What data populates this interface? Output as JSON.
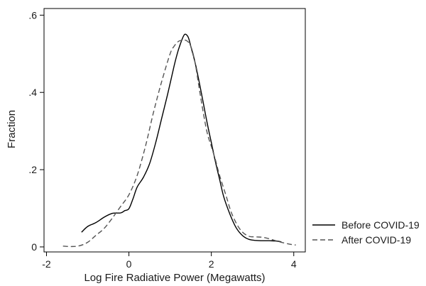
{
  "chart_data": {
    "type": "line",
    "title": "",
    "xlabel": "Log Fire Radiative Power (Megawatts)",
    "ylabel": "Fraction",
    "xlim": [
      -2.06,
      4.28
    ],
    "ylim": [
      -0.013,
      0.6172
    ],
    "xticks": [
      {
        "value": -2,
        "label": "-2"
      },
      {
        "value": 0,
        "label": "0"
      },
      {
        "value": 2,
        "label": "2"
      },
      {
        "value": 4,
        "label": "4"
      }
    ],
    "yticks": [
      {
        "value": 0,
        "label": "0"
      },
      {
        "value": 0.2,
        "label": ".2"
      },
      {
        "value": 0.4,
        "label": ".4"
      },
      {
        "value": 0.6,
        "label": ".6"
      }
    ],
    "grid": false,
    "legend_position": "bottom-right outside",
    "series": [
      {
        "name": "Before COVID-19",
        "style": "solid",
        "color": "#000000",
        "x": [
          -1.15,
          -1.0,
          -0.8,
          -0.6,
          -0.4,
          -0.2,
          -0.1,
          0.0,
          0.1,
          0.2,
          0.35,
          0.5,
          0.65,
          0.8,
          0.95,
          1.1,
          1.2,
          1.3,
          1.35,
          1.4,
          1.45,
          1.5,
          1.6,
          1.7,
          1.8,
          1.9,
          2.0,
          2.1,
          2.2,
          2.3,
          2.45,
          2.6,
          2.75,
          2.9,
          3.05,
          3.2,
          3.4,
          3.6,
          3.7
        ],
        "y": [
          0.038,
          0.053,
          0.063,
          0.077,
          0.087,
          0.088,
          0.094,
          0.099,
          0.125,
          0.155,
          0.18,
          0.215,
          0.27,
          0.335,
          0.4,
          0.47,
          0.51,
          0.54,
          0.55,
          0.549,
          0.54,
          0.52,
          0.48,
          0.43,
          0.375,
          0.32,
          0.27,
          0.22,
          0.175,
          0.13,
          0.085,
          0.05,
          0.03,
          0.02,
          0.017,
          0.016,
          0.016,
          0.015,
          0.013
        ]
      },
      {
        "name": "After COVID-19",
        "style": "dashed",
        "color": "#555555",
        "x": [
          -1.6,
          -1.4,
          -1.2,
          -1.0,
          -0.8,
          -0.6,
          -0.4,
          -0.2,
          0.0,
          0.2,
          0.4,
          0.6,
          0.8,
          1.0,
          1.1,
          1.2,
          1.3,
          1.4,
          1.5,
          1.6,
          1.7,
          1.8,
          1.9,
          2.0,
          2.1,
          2.2,
          2.35,
          2.5,
          2.7,
          2.9,
          3.1,
          3.3,
          3.5,
          3.7,
          3.9,
          4.05
        ],
        "y": [
          0.002,
          0.001,
          0.003,
          0.012,
          0.03,
          0.048,
          0.075,
          0.105,
          0.135,
          0.185,
          0.26,
          0.35,
          0.43,
          0.5,
          0.52,
          0.532,
          0.535,
          0.534,
          0.52,
          0.48,
          0.415,
          0.35,
          0.295,
          0.26,
          0.225,
          0.185,
          0.135,
          0.085,
          0.045,
          0.028,
          0.026,
          0.024,
          0.018,
          0.012,
          0.007,
          0.005
        ]
      }
    ]
  }
}
